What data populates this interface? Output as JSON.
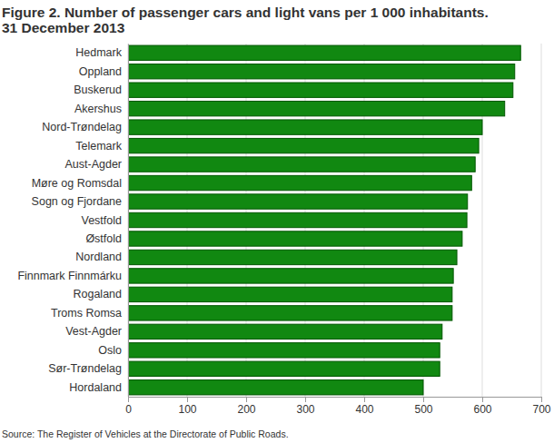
{
  "chart_data": {
    "type": "bar",
    "orientation": "horizontal",
    "title": "Figure 2. Number of passenger cars and light vans per 1 000 inhabitants.\n31 December 2013",
    "source": "Source: The Register of Vehicles at the Directorate of Public Roads.",
    "categories": [
      "Hedmark",
      "Oppland",
      "Buskerud",
      "Akershus",
      "Nord-Trøndelag",
      "Telemark",
      "Aust-Agder",
      "Møre og Romsdal",
      "Sogn og Fjordane",
      "Vestfold",
      "Østfold",
      "Nordland",
      "Finnmark Finnmárku",
      "Rogaland",
      "Troms Romsa",
      "Vest-Agder",
      "Oslo",
      "Sør-Trøndelag",
      "Hordaland"
    ],
    "values": [
      665,
      655,
      652,
      638,
      600,
      594,
      588,
      582,
      575,
      574,
      566,
      557,
      551,
      549,
      549,
      532,
      528,
      528,
      500
    ],
    "color": "#118811",
    "xlim": [
      0,
      700
    ],
    "xticks": [
      0,
      100,
      200,
      300,
      400,
      500,
      600,
      700
    ],
    "grid": true
  }
}
